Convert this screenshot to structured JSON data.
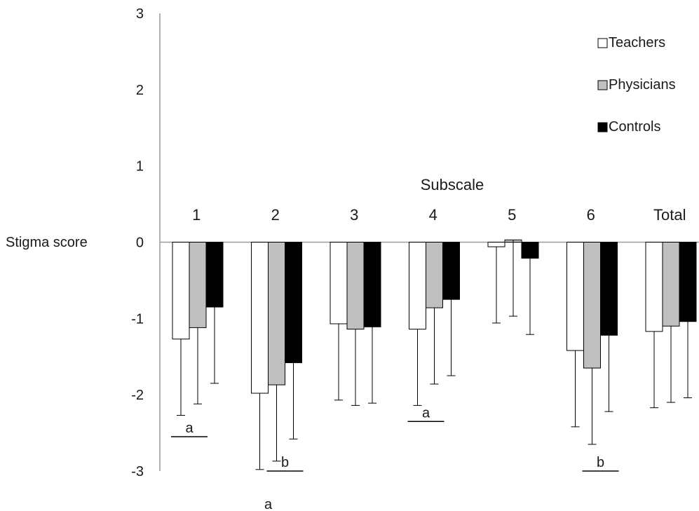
{
  "chart_data": {
    "type": "bar",
    "ylabel": "Stigma score",
    "xlabel": "Subscale",
    "ylim": [
      -3,
      3
    ],
    "yticks": [
      3,
      2,
      1,
      0,
      -1,
      -2,
      -3
    ],
    "categories": [
      "1",
      "2",
      "3",
      "4",
      "5",
      "6",
      "Total"
    ],
    "legend_position": "top-right",
    "grid": false,
    "series": [
      {
        "name": "Teachers",
        "color": "#ffffff",
        "values": [
          -1.27,
          -1.98,
          -1.07,
          -1.14,
          -0.06,
          -1.42,
          -1.17
        ],
        "errors": [
          1.0,
          1.0,
          1.0,
          1.0,
          1.0,
          1.0,
          1.0
        ]
      },
      {
        "name": "Physicians",
        "color": "#c0c0c0",
        "values": [
          -1.12,
          -1.87,
          -1.14,
          -0.86,
          0.03,
          -1.65,
          -1.1
        ],
        "errors": [
          1.0,
          1.0,
          1.0,
          1.0,
          1.0,
          1.0,
          1.0
        ]
      },
      {
        "name": "Controls",
        "color": "#000000",
        "values": [
          -0.85,
          -1.58,
          -1.11,
          -0.75,
          -0.21,
          -1.22,
          -1.04
        ],
        "errors": [
          1.0,
          1.0,
          1.0,
          1.0,
          1.0,
          1.0,
          1.0
        ]
      }
    ],
    "annotations": [
      {
        "text": "a",
        "category_index": 0,
        "from_series": 0,
        "to_series": 1,
        "y": -2.55
      },
      {
        "text": "b",
        "category_index": 1,
        "from_series": 1,
        "to_series": 2,
        "y": -3.0
      },
      {
        "text": "a",
        "category_index": 1,
        "from_series": 0,
        "to_series": 1,
        "y": -3.55
      },
      {
        "text": "a",
        "category_index": 3,
        "from_series": 0,
        "to_series": 1,
        "y": -2.35
      },
      {
        "text": "b",
        "category_index": 5,
        "from_series": 1,
        "to_series": 2,
        "y": -3.0
      }
    ]
  }
}
